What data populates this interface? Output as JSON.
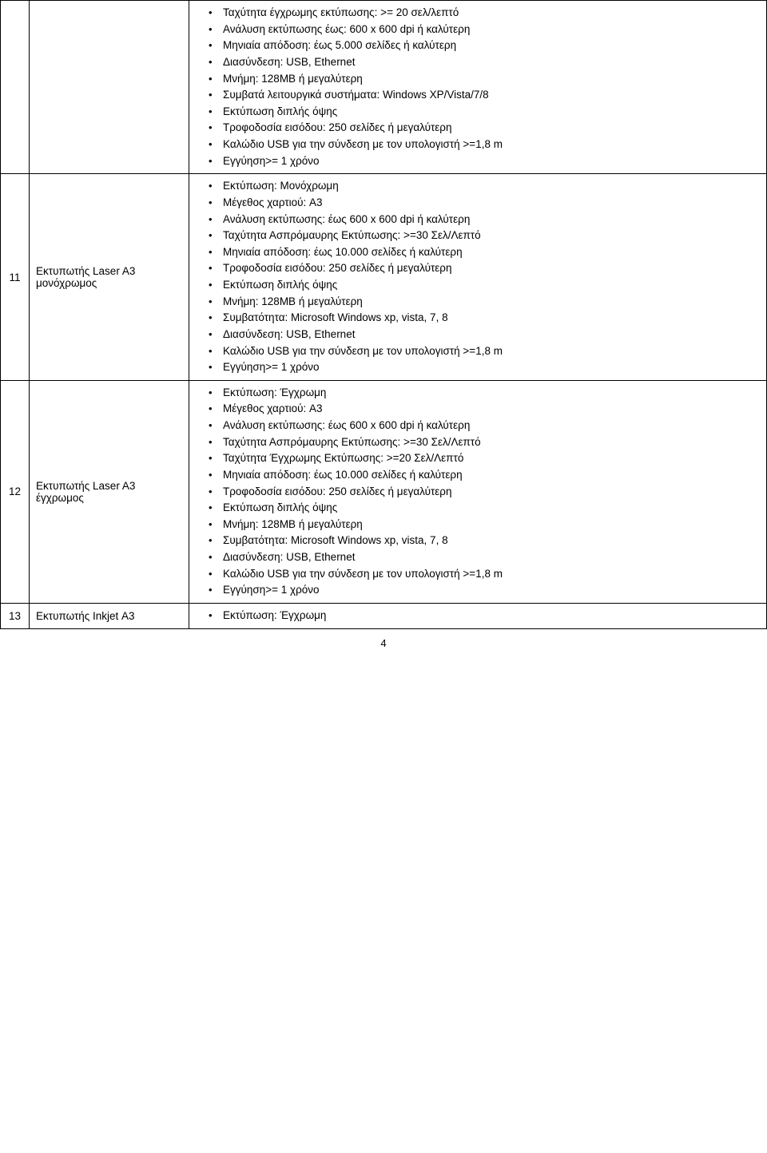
{
  "rows": [
    {
      "num": "",
      "name": "",
      "specs": [
        "Ταχύτητα έγχρωμης εκτύπωσης: >= 20 σελ/λεπτό",
        "Ανάλυση εκτύπωσης έως: 600 x 600 dpi ή καλύτερη",
        "Μηνιαία απόδοση: έως 5.000 σελίδες ή καλύτερη",
        "Διασύνδεση: USB, Ethernet",
        "Μνήμη: 128MB ή μεγαλύτερη",
        "Συμβατά λειτουργικά συστήματα: Windows XP/Vista/7/8",
        "Εκτύπωση διπλής όψης",
        "Τροφοδοσία εισόδου: 250 σελίδες ή μεγαλύτερη",
        "Καλώδιο USB για την σύνδεση με τον υπολογιστή >=1,8 m",
        "Εγγύηση>= 1 χρόνο"
      ]
    },
    {
      "num": "11",
      "name": "Εκτυπωτής Laser A3 μονόχρωμος",
      "specs": [
        "Εκτύπωση: Μονόχρωμη",
        "Μέγεθος χαρτιού: A3",
        "Ανάλυση εκτύπωσης: έως 600 x 600 dpi ή καλύτερη",
        "Ταχύτητα Ασπρόμαυρης Εκτύπωσης: >=30 Σελ/Λεπτό",
        "Μηνιαία απόδοση: έως 10.000 σελίδες ή καλύτερη",
        "Τροφοδοσία εισόδου: 250 σελίδες ή μεγαλύτερη",
        "Εκτύπωση διπλής όψης",
        "Μνήμη: 128MB ή μεγαλύτερη",
        "Συμβατότητα: Microsoft Windows xp, vista, 7, 8",
        "Διασύνδεση: USB, Ethernet",
        "Καλώδιο USB για την σύνδεση με τον υπολογιστή >=1,8 m",
        "Εγγύηση>= 1 χρόνο"
      ]
    },
    {
      "num": "12",
      "name": "Εκτυπωτής Laser A3 έγχρωμος",
      "specs": [
        "Εκτύπωση: Έγχρωμη",
        "Μέγεθος χαρτιού: A3",
        "Ανάλυση εκτύπωσης: έως 600 x 600 dpi ή καλύτερη",
        "Ταχύτητα Ασπρόμαυρης Εκτύπωσης: >=30 Σελ/Λεπτό",
        "Ταχύτητα Έγχρωμης Εκτύπωσης: >=20 Σελ/Λεπτό",
        "Μηνιαία απόδοση: έως 10.000 σελίδες ή καλύτερη",
        "Τροφοδοσία εισόδου: 250 σελίδες ή μεγαλύτερη",
        "Εκτύπωση διπλής όψης",
        "Μνήμη: 128MB ή μεγαλύτερη",
        "Συμβατότητα: Microsoft Windows xp, vista, 7, 8",
        "Διασύνδεση: USB, Ethernet",
        "Καλώδιο USB για την σύνδεση με τον υπολογιστή >=1,8 m",
        "Εγγύηση>= 1 χρόνο"
      ]
    },
    {
      "num": "13",
      "name": "Εκτυπωτής Inkjet Α3",
      "specs": [
        "Εκτύπωση: Έγχρωμη"
      ]
    }
  ],
  "page_number": "4"
}
